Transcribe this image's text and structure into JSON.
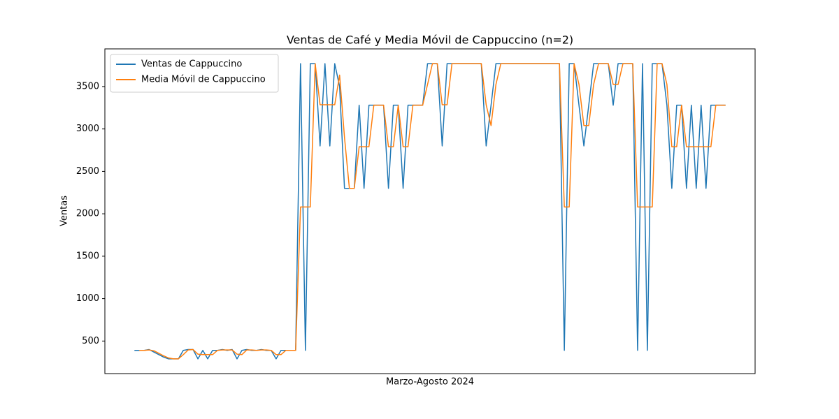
{
  "chart_data": {
    "type": "line",
    "title": "Ventas de Café y Media Móvil de Cappuccino (n=2)",
    "xlabel": "Marzo-Agosto 2024",
    "ylabel": "Ventas",
    "ylim": [
      116,
      3944
    ],
    "yticks": [
      500,
      1000,
      1500,
      2000,
      2500,
      3000,
      3500
    ],
    "legend": "upper left",
    "grid": false,
    "series": [
      {
        "name": "Ventas de Cappuccino",
        "color": "#1f77b4",
        "values": [
          390,
          390,
          390,
          400,
          370,
          340,
          310,
          290,
          290,
          290,
          390,
          400,
          400,
          290,
          390,
          290,
          390,
          390,
          400,
          390,
          400,
          290,
          390,
          400,
          390,
          390,
          400,
          390,
          390,
          290,
          390,
          390,
          390,
          390,
          3770,
          390,
          3770,
          3770,
          2800,
          3770,
          2800,
          3770,
          3500,
          2300,
          2300,
          2300,
          3280,
          2300,
          3280,
          3280,
          3280,
          3280,
          2300,
          3280,
          3280,
          2300,
          3280,
          3280,
          3280,
          3280,
          3770,
          3770,
          3770,
          2800,
          3770,
          3770,
          3770,
          3770,
          3770,
          3770,
          3770,
          3770,
          2800,
          3280,
          3770,
          3770,
          3770,
          3770,
          3770,
          3770,
          3770,
          3770,
          3770,
          3770,
          3770,
          3770,
          3770,
          3770,
          390,
          3770,
          3770,
          3280,
          2800,
          3280,
          3770,
          3770,
          3770,
          3770,
          3280,
          3770,
          3770,
          3770,
          3770,
          390,
          3770,
          390,
          3770,
          3770,
          3770,
          3280,
          2300,
          3280,
          3280,
          2300,
          3280,
          2300,
          3280,
          2300,
          3280,
          3280,
          3280,
          3280
        ]
      },
      {
        "name": "Media Móvil de Cappuccino",
        "color": "#ff7f0e",
        "values": [
          null,
          390,
          390,
          395,
          385,
          355,
          325,
          300,
          290,
          290,
          340,
          395,
          400,
          345,
          340,
          340,
          340,
          390,
          395,
          395,
          395,
          345,
          340,
          395,
          395,
          390,
          395,
          395,
          390,
          340,
          340,
          390,
          390,
          390,
          2080,
          2080,
          2080,
          3770,
          3285,
          3285,
          3285,
          3285,
          3635,
          2900,
          2300,
          2300,
          2790,
          2790,
          2790,
          3280,
          3280,
          3280,
          2790,
          2790,
          3280,
          2790,
          2790,
          3280,
          3280,
          3280,
          3525,
          3770,
          3770,
          3285,
          3285,
          3770,
          3770,
          3770,
          3770,
          3770,
          3770,
          3770,
          3285,
          3040,
          3525,
          3770,
          3770,
          3770,
          3770,
          3770,
          3770,
          3770,
          3770,
          3770,
          3770,
          3770,
          3770,
          3770,
          2080,
          2080,
          3770,
          3525,
          3040,
          3040,
          3525,
          3770,
          3770,
          3770,
          3525,
          3525,
          3770,
          3770,
          3770,
          2080,
          2080,
          2080,
          2080,
          3770,
          3770,
          3525,
          2790,
          2790,
          3280,
          2790,
          2790,
          2790,
          2790,
          2790,
          2790,
          3280,
          3280,
          3280
        ]
      }
    ]
  }
}
